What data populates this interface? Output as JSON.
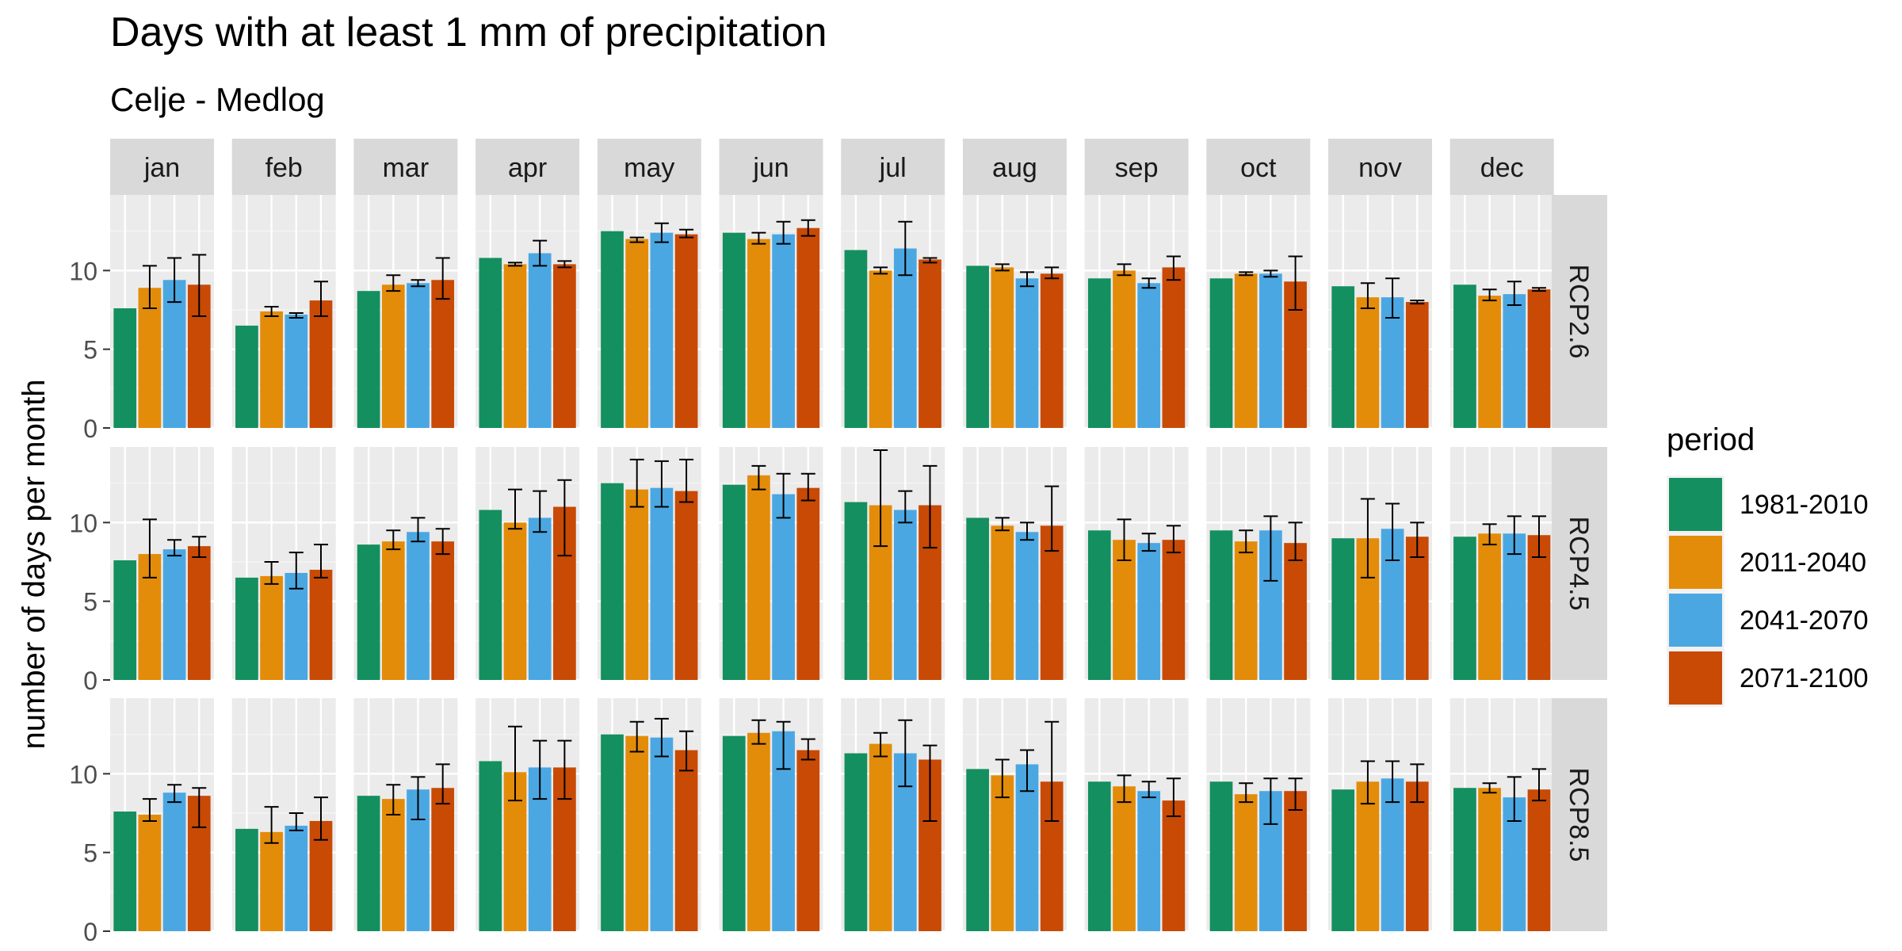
{
  "chart_data": {
    "type": "bar",
    "title": "Days with at least 1 mm of precipitation",
    "subtitle": "Celje - Medlog",
    "ylabel": "number of days per month",
    "xlabel": "",
    "ylim": [
      0,
      14.8
    ],
    "yticks": [
      0,
      5,
      10
    ],
    "grid": true,
    "legend": {
      "title": "period",
      "position": "right",
      "entries": [
        "1981-2010",
        "2011-2040",
        "2041-2070",
        "2071-2100"
      ]
    },
    "colors": [
      "#148f5f",
      "#e38c0a",
      "#4ba7e2",
      "#c84a05"
    ],
    "facet_columns": [
      "jan",
      "feb",
      "mar",
      "apr",
      "may",
      "jun",
      "jul",
      "aug",
      "sep",
      "oct",
      "nov",
      "dec"
    ],
    "facet_rows": [
      "RCP2.6",
      "RCP4.5",
      "RCP8.5"
    ],
    "periods": [
      "1981-2010",
      "2011-2040",
      "2041-2070",
      "2071-2100"
    ],
    "panels": {
      "RCP2.6": {
        "values": [
          [
            7.6,
            8.9,
            9.4,
            9.1
          ],
          [
            6.5,
            7.4,
            7.2,
            8.1
          ],
          [
            8.7,
            9.1,
            9.2,
            9.4
          ],
          [
            10.8,
            10.4,
            11.1,
            10.4
          ],
          [
            12.5,
            12.0,
            12.4,
            12.3
          ],
          [
            12.4,
            12.0,
            12.3,
            12.7
          ],
          [
            11.3,
            10.0,
            11.4,
            10.7
          ],
          [
            10.3,
            10.2,
            9.5,
            9.8
          ],
          [
            9.5,
            10.0,
            9.2,
            10.2
          ],
          [
            9.5,
            9.8,
            9.8,
            9.3
          ],
          [
            9.0,
            8.3,
            8.3,
            8.0
          ],
          [
            9.1,
            8.4,
            8.5,
            8.8
          ]
        ],
        "errors": [
          [
            null,
            [
              7.6,
              10.3
            ],
            [
              8.0,
              10.8
            ],
            [
              7.1,
              11.0
            ]
          ],
          [
            null,
            [
              7.1,
              7.7
            ],
            [
              7.0,
              7.3
            ],
            [
              7.1,
              9.3
            ]
          ],
          [
            null,
            [
              8.7,
              9.7
            ],
            [
              9.0,
              9.4
            ],
            [
              8.2,
              10.8
            ]
          ],
          [
            null,
            [
              10.3,
              10.5
            ],
            [
              10.3,
              11.9
            ],
            [
              10.2,
              10.6
            ]
          ],
          [
            null,
            [
              11.8,
              12.1
            ],
            [
              11.8,
              13.0
            ],
            [
              12.1,
              12.6
            ]
          ],
          [
            null,
            [
              11.7,
              12.4
            ],
            [
              11.7,
              13.1
            ],
            [
              12.2,
              13.2
            ]
          ],
          [
            null,
            [
              9.8,
              10.2
            ],
            [
              9.7,
              13.1
            ],
            [
              10.5,
              10.8
            ]
          ],
          [
            null,
            [
              10.0,
              10.4
            ],
            [
              9.0,
              9.9
            ],
            [
              9.5,
              10.2
            ]
          ],
          [
            null,
            [
              9.7,
              10.4
            ],
            [
              8.9,
              9.5
            ],
            [
              9.4,
              10.9
            ]
          ],
          [
            null,
            [
              9.7,
              9.9
            ],
            [
              9.6,
              10.0
            ],
            [
              7.5,
              10.9
            ]
          ],
          [
            null,
            [
              7.6,
              9.2
            ],
            [
              7.0,
              9.5
            ],
            [
              7.9,
              8.1
            ]
          ],
          [
            null,
            [
              8.1,
              8.8
            ],
            [
              7.8,
              9.3
            ],
            [
              8.7,
              8.9
            ]
          ]
        ]
      },
      "RCP4.5": {
        "values": [
          [
            7.6,
            8.0,
            8.3,
            8.5
          ],
          [
            6.5,
            6.6,
            6.8,
            7.0
          ],
          [
            8.6,
            8.8,
            9.4,
            8.8
          ],
          [
            10.8,
            10.0,
            10.3,
            11.0
          ],
          [
            12.5,
            12.1,
            12.2,
            12.0
          ],
          [
            12.4,
            13.0,
            11.8,
            12.2
          ],
          [
            11.3,
            11.1,
            10.8,
            11.1
          ],
          [
            10.3,
            9.8,
            9.4,
            9.8
          ],
          [
            9.5,
            8.9,
            8.7,
            8.9
          ],
          [
            9.5,
            8.8,
            9.5,
            8.7
          ],
          [
            9.0,
            9.0,
            9.6,
            9.1
          ],
          [
            9.1,
            9.3,
            9.3,
            9.2
          ]
        ],
        "errors": [
          [
            null,
            [
              6.5,
              10.2
            ],
            [
              7.9,
              8.9
            ],
            [
              7.8,
              9.1
            ]
          ],
          [
            null,
            [
              6.1,
              7.5
            ],
            [
              5.8,
              8.1
            ],
            [
              6.5,
              8.6
            ]
          ],
          [
            null,
            [
              8.3,
              9.5
            ],
            [
              8.8,
              10.3
            ],
            [
              8.0,
              9.6
            ]
          ],
          [
            null,
            [
              9.6,
              12.1
            ],
            [
              9.4,
              12.0
            ],
            [
              7.9,
              12.7
            ]
          ],
          [
            null,
            [
              11.0,
              14.0
            ],
            [
              11.0,
              13.9
            ],
            [
              11.3,
              14.0
            ]
          ],
          [
            null,
            [
              12.1,
              13.6
            ],
            [
              10.3,
              13.1
            ],
            [
              11.4,
              13.1
            ]
          ],
          [
            null,
            [
              8.5,
              14.6
            ],
            [
              10.0,
              12.0
            ],
            [
              8.4,
              13.6
            ]
          ],
          [
            null,
            [
              9.5,
              10.3
            ],
            [
              8.9,
              10.0
            ],
            [
              8.2,
              12.3
            ]
          ],
          [
            null,
            [
              7.6,
              10.2
            ],
            [
              8.2,
              9.3
            ],
            [
              8.1,
              9.8
            ]
          ],
          [
            null,
            [
              8.1,
              9.5
            ],
            [
              6.3,
              10.4
            ],
            [
              7.6,
              10.0
            ]
          ],
          [
            null,
            [
              6.5,
              11.5
            ],
            [
              7.6,
              11.2
            ],
            [
              7.8,
              10.0
            ]
          ],
          [
            null,
            [
              8.6,
              9.9
            ],
            [
              8.0,
              10.4
            ],
            [
              7.8,
              10.4
            ]
          ]
        ]
      },
      "RCP8.5": {
        "values": [
          [
            7.6,
            7.4,
            8.8,
            8.6
          ],
          [
            6.5,
            6.3,
            6.7,
            7.0
          ],
          [
            8.6,
            8.4,
            9.0,
            9.1
          ],
          [
            10.8,
            10.1,
            10.4,
            10.4
          ],
          [
            12.5,
            12.4,
            12.3,
            11.5
          ],
          [
            12.4,
            12.6,
            12.7,
            11.5
          ],
          [
            11.3,
            11.9,
            11.3,
            10.9
          ],
          [
            10.3,
            9.9,
            10.6,
            9.5
          ],
          [
            9.5,
            9.2,
            8.9,
            8.3
          ],
          [
            9.5,
            8.7,
            8.9,
            8.9
          ],
          [
            9.0,
            9.5,
            9.7,
            9.5
          ],
          [
            9.1,
            9.1,
            8.5,
            9.0
          ]
        ],
        "errors": [
          [
            null,
            [
              7.0,
              8.4
            ],
            [
              8.2,
              9.3
            ],
            [
              6.6,
              9.1
            ]
          ],
          [
            null,
            [
              5.6,
              7.9
            ],
            [
              6.4,
              7.5
            ],
            [
              5.8,
              8.5
            ]
          ],
          [
            null,
            [
              7.4,
              9.3
            ],
            [
              7.1,
              9.8
            ],
            [
              8.1,
              10.6
            ]
          ],
          [
            null,
            [
              8.3,
              13.0
            ],
            [
              8.4,
              12.1
            ],
            [
              8.4,
              12.1
            ]
          ],
          [
            null,
            [
              11.4,
              13.3
            ],
            [
              11.1,
              13.5
            ],
            [
              10.2,
              12.7
            ]
          ],
          [
            null,
            [
              11.9,
              13.4
            ],
            [
              10.3,
              13.3
            ],
            [
              10.9,
              12.2
            ]
          ],
          [
            null,
            [
              11.1,
              12.6
            ],
            [
              9.2,
              13.4
            ],
            [
              7.0,
              11.8
            ]
          ],
          [
            null,
            [
              8.5,
              10.9
            ],
            [
              8.9,
              11.5
            ],
            [
              7.0,
              13.3
            ]
          ],
          [
            null,
            [
              8.2,
              9.9
            ],
            [
              8.5,
              9.5
            ],
            [
              7.3,
              9.7
            ]
          ],
          [
            null,
            [
              8.2,
              9.4
            ],
            [
              6.8,
              9.7
            ],
            [
              7.7,
              9.7
            ]
          ],
          [
            null,
            [
              8.1,
              10.8
            ],
            [
              8.2,
              10.8
            ],
            [
              8.2,
              10.6
            ]
          ],
          [
            null,
            [
              8.8,
              9.4
            ],
            [
              7.0,
              9.8
            ],
            [
              8.3,
              10.3
            ]
          ]
        ]
      }
    }
  }
}
